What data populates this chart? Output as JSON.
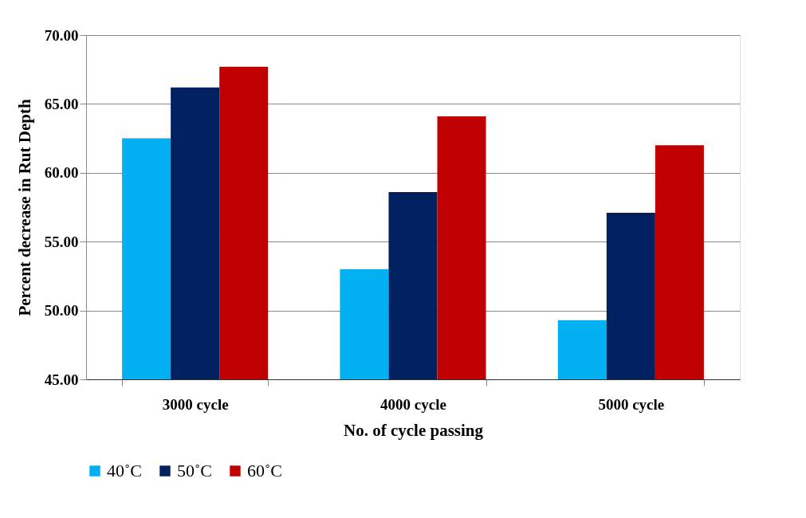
{
  "chart_data": {
    "type": "bar",
    "xlabel": "No. of cycle  passing",
    "ylabel": "Percent decrease in Rut Depth",
    "categories": [
      "3000 cycle",
      "4000 cycle",
      "5000 cycle"
    ],
    "series": [
      {
        "name": "40˚C",
        "color": "#00b0f0",
        "values": [
          62.5,
          53.0,
          49.3
        ]
      },
      {
        "name": "50˚C",
        "color": "#002060",
        "values": [
          66.2,
          58.6,
          57.1
        ]
      },
      {
        "name": "60˚C",
        "color": "#c00000",
        "values": [
          67.7,
          64.1,
          62.0
        ]
      }
    ],
    "ylim": [
      45,
      70
    ],
    "yticks": [
      {
        "value": 45,
        "label": "45.00"
      },
      {
        "value": 50,
        "label": "50.00"
      },
      {
        "value": 55,
        "label": "55.00"
      },
      {
        "value": 60,
        "label": "60.00"
      },
      {
        "value": 65,
        "label": "65.00"
      },
      {
        "value": 70,
        "label": "70.00"
      }
    ],
    "grid": "y",
    "legend": "bottom"
  }
}
